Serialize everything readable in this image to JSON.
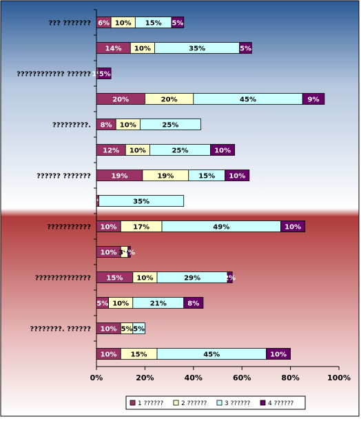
{
  "chart_data": {
    "type": "bar",
    "orientation": "horizontal",
    "stacked": true,
    "xlim": [
      0,
      100
    ],
    "xticks": [
      "0%",
      "20%",
      "40%",
      "60%",
      "80%",
      "100%"
    ],
    "grid": false,
    "legend_position": "bottom",
    "categories": [
      "??? ???????",
      "",
      "???????????? ??????",
      "",
      "?????????.",
      "",
      "?????? ???????",
      "",
      "???????????",
      "",
      "??????????????",
      "",
      "????????. ??????",
      ""
    ],
    "series": [
      {
        "name": "1 ??????",
        "color": "#993366",
        "values": [
          6,
          14,
          1,
          20,
          8,
          12,
          19,
          1,
          10,
          10,
          15,
          5,
          10,
          10
        ],
        "labels": [
          "6%",
          "14%",
          "1%",
          "20%",
          "8%",
          "12%",
          "19%",
          "1%",
          "10%",
          "10%",
          "15%",
          "5%",
          "10%",
          "10%"
        ]
      },
      {
        "name": "2 ??????",
        "color": "#FFFFCC",
        "values": [
          10,
          10,
          0,
          20,
          10,
          10,
          19,
          0,
          17,
          3,
          10,
          10,
          5,
          15
        ],
        "labels": [
          "10%",
          "10%",
          "",
          "20%",
          "10%",
          "10%",
          "19%",
          "",
          "17%",
          "3%",
          "10%",
          "10%",
          "5%",
          "15%"
        ]
      },
      {
        "name": "3 ??????",
        "color": "#CCFFFF",
        "values": [
          15,
          35,
          0,
          45,
          25,
          25,
          15,
          35,
          49,
          0,
          29,
          21,
          5,
          45
        ],
        "labels": [
          "15%",
          "35%",
          "",
          "45%",
          "25%",
          "25%",
          "15%",
          "35%",
          "49%",
          "",
          "29%",
          "21%",
          "5%",
          "45%"
        ]
      },
      {
        "name": "4 ??????",
        "color": "#660066",
        "values": [
          5,
          5,
          5,
          9,
          0,
          10,
          10,
          0,
          10,
          1,
          2,
          8,
          0,
          10
        ],
        "labels": [
          "5%",
          "5%",
          "5%",
          "9%",
          "",
          "10%",
          "10%",
          "",
          "10%",
          "1%",
          "2%",
          "8%",
          "",
          "10%"
        ]
      }
    ]
  }
}
